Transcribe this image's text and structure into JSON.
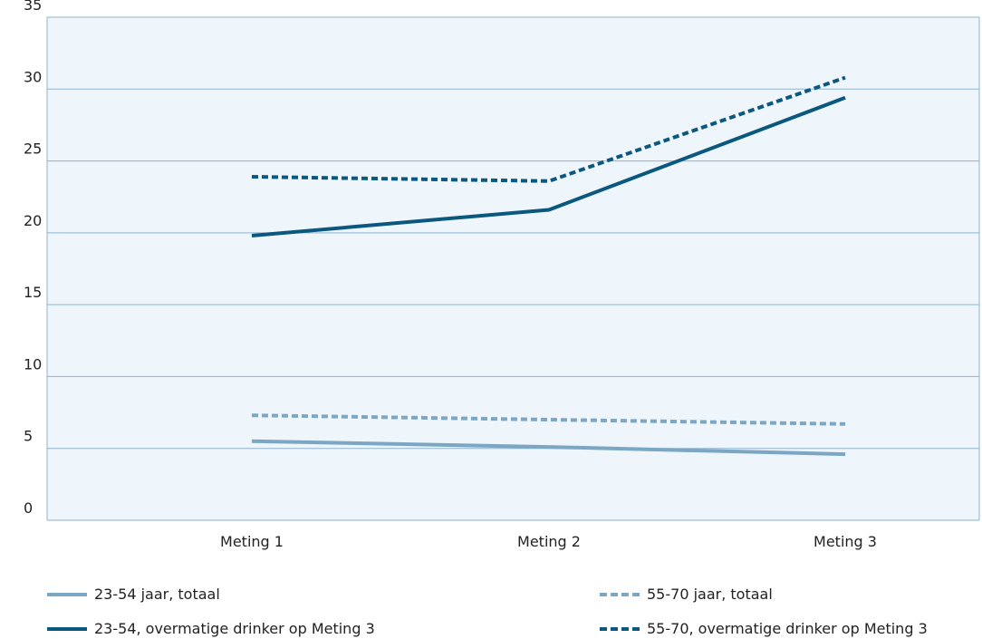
{
  "chart_data": {
    "type": "line",
    "categories": [
      "Meting 1",
      "Meting 2",
      "Meting 3"
    ],
    "ylim": [
      0,
      35
    ],
    "yticks": [
      0,
      5,
      10,
      15,
      20,
      25,
      30,
      35
    ],
    "grid": true,
    "legend_position": "bottom",
    "series": [
      {
        "name": "23-54 jaar, totaal",
        "values": [
          5.5,
          5.1,
          4.6
        ],
        "color": "#7ba7c4",
        "style": "solid"
      },
      {
        "name": "55-70 jaar, totaal",
        "values": [
          7.3,
          7.0,
          6.7
        ],
        "color": "#7ba7c4",
        "style": "dashed"
      },
      {
        "name": "23-54, overmatige drinker op Meting 3",
        "values": [
          19.8,
          21.6,
          29.4
        ],
        "color": "#0b587f",
        "style": "solid"
      },
      {
        "name": "55-70, overmatige drinker op Meting 3",
        "values": [
          23.9,
          23.6,
          30.8
        ],
        "color": "#0b587f",
        "style": "dashed"
      }
    ]
  }
}
